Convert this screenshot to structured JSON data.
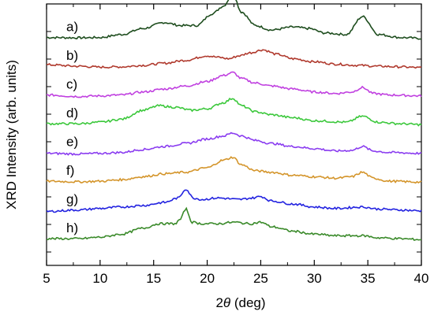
{
  "chart_data": {
    "type": "line",
    "xlabel_prefix": "2",
    "xlabel_symbol": "θ",
    "xlabel_suffix": " (deg)",
    "ylabel": "XRD Intensity (arb. units)",
    "xlim": [
      5,
      40
    ],
    "x_ticks": [
      5,
      10,
      15,
      20,
      25,
      30,
      35,
      40
    ],
    "y_ticks_visible": false,
    "grid": false,
    "legend": "none",
    "series": [
      {
        "name": "a)",
        "color": "#1e4d1e",
        "offset": 7,
        "x": [
          5,
          8,
          10,
          12,
          14,
          16,
          17.5,
          19,
          20.5,
          21.5,
          22.4,
          23.2,
          24.5,
          26,
          28,
          29.5,
          31,
          33,
          34.5,
          36,
          38,
          40
        ],
        "y": [
          0.05,
          0.04,
          0.05,
          0.15,
          0.35,
          0.55,
          0.45,
          0.45,
          0.85,
          1.1,
          1.5,
          0.9,
          0.45,
          0.3,
          0.4,
          0.35,
          0.2,
          0.15,
          0.75,
          0.15,
          0.05,
          0.02
        ]
      },
      {
        "name": "b)",
        "color": "#b03a2e",
        "offset": 6,
        "x": [
          5,
          8,
          10,
          12,
          14,
          16,
          18,
          20,
          21,
          22,
          23,
          24,
          25.2,
          26.5,
          28,
          30,
          32,
          34,
          36,
          38,
          40
        ],
        "y": [
          0.1,
          0.05,
          0.02,
          0.03,
          0.08,
          0.15,
          0.25,
          0.4,
          0.35,
          0.3,
          0.4,
          0.5,
          0.6,
          0.45,
          0.3,
          0.2,
          0.12,
          0.08,
          0.05,
          0.03,
          0.0
        ]
      },
      {
        "name": "c)",
        "color": "#c040e0",
        "offset": 5,
        "x": [
          5,
          8,
          10,
          12,
          14,
          16,
          18,
          20,
          21.5,
          22.4,
          23.2,
          24.5,
          26,
          28,
          30,
          32,
          33.5,
          34.5,
          35.5,
          37,
          40
        ],
        "y": [
          0.05,
          0.0,
          0.02,
          0.05,
          0.15,
          0.25,
          0.35,
          0.5,
          0.7,
          0.8,
          0.6,
          0.45,
          0.35,
          0.25,
          0.15,
          0.1,
          0.15,
          0.3,
          0.1,
          0.05,
          0.02
        ]
      },
      {
        "name": "d)",
        "color": "#3cc83c",
        "offset": 4,
        "x": [
          5,
          8,
          10,
          12,
          14,
          15.5,
          17,
          18.5,
          20,
          21.5,
          22.4,
          23.2,
          24.5,
          26,
          28,
          30,
          33,
          34.5,
          36,
          38,
          40
        ],
        "y": [
          0.05,
          0.05,
          0.1,
          0.2,
          0.5,
          0.65,
          0.6,
          0.5,
          0.55,
          0.75,
          0.9,
          0.65,
          0.45,
          0.35,
          0.25,
          0.15,
          0.1,
          0.3,
          0.1,
          0.05,
          0.02
        ]
      },
      {
        "name": "e)",
        "color": "#8a3cf0",
        "offset": 3,
        "x": [
          5,
          8,
          10,
          12,
          14,
          16,
          18,
          20,
          21.5,
          22.4,
          23.2,
          24.5,
          26,
          28,
          30,
          32,
          33.5,
          34.5,
          35.5,
          37,
          40
        ],
        "y": [
          0.02,
          0.0,
          0.02,
          0.05,
          0.15,
          0.25,
          0.35,
          0.5,
          0.6,
          0.7,
          0.6,
          0.45,
          0.35,
          0.25,
          0.18,
          0.1,
          0.12,
          0.25,
          0.1,
          0.05,
          0.02
        ]
      },
      {
        "name": "f)",
        "color": "#d4952b",
        "offset": 2,
        "x": [
          5,
          8,
          10,
          12,
          14,
          16,
          18,
          20,
          21.5,
          22.4,
          23.2,
          24.5,
          26,
          28,
          30,
          32,
          33.5,
          34.5,
          35.5,
          37,
          40
        ],
        "y": [
          0.05,
          0.03,
          0.05,
          0.1,
          0.2,
          0.3,
          0.35,
          0.5,
          0.75,
          0.85,
          0.6,
          0.4,
          0.35,
          0.25,
          0.2,
          0.15,
          0.2,
          0.35,
          0.15,
          0.05,
          0.02
        ]
      },
      {
        "name": "g)",
        "color": "#2323e0",
        "offset": 1,
        "x": [
          5,
          8,
          10,
          12,
          14,
          16,
          17.3,
          18,
          18.7,
          19.5,
          21,
          23,
          24.2,
          25,
          26,
          28,
          30,
          32,
          34.5,
          36,
          38,
          40
        ],
        "y": [
          0.0,
          0.05,
          0.1,
          0.15,
          0.2,
          0.3,
          0.45,
          0.75,
          0.45,
          0.4,
          0.45,
          0.4,
          0.45,
          0.5,
          0.35,
          0.25,
          0.15,
          0.1,
          0.15,
          0.08,
          0.05,
          0.02
        ]
      },
      {
        "name": "h)",
        "color": "#3a8a2a",
        "offset": 0,
        "x": [
          5,
          8,
          10,
          12,
          14,
          15.5,
          17,
          17.5,
          18,
          18.6,
          19.5,
          21,
          22.5,
          24,
          25,
          26,
          28,
          30,
          32,
          34.5,
          36,
          38,
          40
        ],
        "y": [
          0.05,
          0.05,
          0.1,
          0.2,
          0.4,
          0.55,
          0.55,
          0.7,
          1.05,
          0.6,
          0.55,
          0.55,
          0.6,
          0.55,
          0.6,
          0.45,
          0.3,
          0.2,
          0.15,
          0.15,
          0.08,
          0.05,
          0.02
        ]
      }
    ]
  }
}
